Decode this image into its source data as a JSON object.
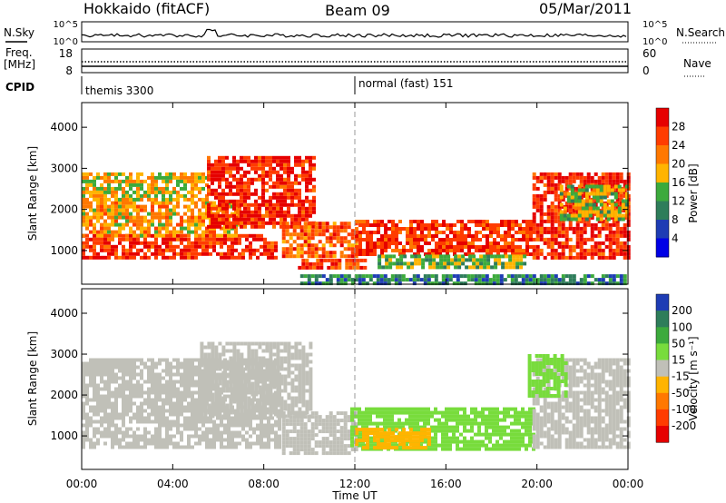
{
  "header": {
    "station": "Hokkaido (fitACF)",
    "beam": "Beam 09",
    "date": "05/Mar/2011"
  },
  "strip_panels": {
    "nsky": {
      "label": "N.Sky",
      "ticks_left": [
        "10^5",
        "10^0"
      ],
      "ticks_right": [
        "10^5",
        "10^0"
      ],
      "right_label": "N.Search"
    },
    "freq": {
      "label_lines": [
        "Freq.",
        "[MHz]"
      ],
      "ticks_left": [
        "18",
        "8"
      ],
      "ticks_right": [
        "60",
        "0"
      ],
      "right_label": "Nave"
    },
    "cpid": {
      "label": "CPID",
      "modes": [
        {
          "name": "themis 3300",
          "start_hour": 0
        },
        {
          "name": "normal (fast) 151",
          "start_hour": 12
        }
      ]
    }
  },
  "x_axis": {
    "label": "Time UT",
    "range_hours": [
      0,
      24
    ],
    "ticks": [
      "00:00",
      "04:00",
      "08:00",
      "12:00",
      "16:00",
      "20:00",
      "00:00"
    ]
  },
  "power_panel": {
    "ylabel": "Slant Range [km]",
    "yticks": [
      "1000",
      "2000",
      "3000",
      "4000"
    ],
    "colorbar_label": "Power [dB]",
    "colorbar_ticks": [
      "4",
      "8",
      "12",
      "16",
      "20",
      "24",
      "28"
    ],
    "colors": [
      "#0000e6",
      "#1e3cb4",
      "#2e7d5a",
      "#3caa3c",
      "#ffb400",
      "#ff7800",
      "#ff3c00",
      "#e60000"
    ]
  },
  "velocity_panel": {
    "ylabel": "Slant Range [km]",
    "yticks": [
      "1000",
      "2000",
      "3000",
      "4000"
    ],
    "colorbar_label": "Velocity [m s⁻¹]",
    "colorbar_ticks": [
      "200",
      "100",
      "50",
      "15",
      "-15",
      "-50",
      "-100",
      "-200"
    ],
    "colors": [
      "#1e3cb4",
      "#2e7d5a",
      "#3caa3c",
      "#78dc3c",
      "#c0c0b8",
      "#ffb400",
      "#ff7800",
      "#ff3c00",
      "#e60000"
    ]
  },
  "chart_data": [
    {
      "type": "heatmap",
      "xlabel": "Time UT",
      "ylabel": "Slant Range [km]",
      "xlim": [
        0,
        24
      ],
      "ylim": [
        180,
        4600
      ],
      "colorbar": "Power [dB]",
      "regions": [
        {
          "t0": 0.0,
          "t1": 8.6,
          "r0": 800,
          "r1": 1400,
          "value": 28
        },
        {
          "t0": 0.0,
          "t1": 7.0,
          "r0": 1400,
          "r1": 2200,
          "value": 20
        },
        {
          "t0": 0.0,
          "t1": 5.5,
          "r0": 2200,
          "r1": 2900,
          "value": 18
        },
        {
          "t0": 5.5,
          "t1": 10.2,
          "r0": 1600,
          "r1": 3300,
          "value": 28
        },
        {
          "t0": 8.8,
          "t1": 12.0,
          "r0": 900,
          "r1": 1700,
          "value": 24
        },
        {
          "t0": 9.5,
          "t1": 12.5,
          "r0": 550,
          "r1": 800,
          "value": 26
        },
        {
          "t0": 12.0,
          "t1": 19.8,
          "r0": 900,
          "r1": 1750,
          "value": 27
        },
        {
          "t0": 13.0,
          "t1": 19.5,
          "r0": 600,
          "r1": 900,
          "value": 15
        },
        {
          "t0": 19.8,
          "t1": 24.0,
          "r0": 800,
          "r1": 2900,
          "value": 28
        },
        {
          "t0": 21.0,
          "t1": 24.0,
          "r0": 1800,
          "r1": 2600,
          "value": 16
        },
        {
          "t0": 9.6,
          "t1": 23.8,
          "r0": 180,
          "r1": 420,
          "value": 10
        }
      ]
    },
    {
      "type": "heatmap",
      "xlabel": "Time UT",
      "ylabel": "Slant Range [km]",
      "xlim": [
        0,
        24
      ],
      "ylim": [
        180,
        4600
      ],
      "colorbar": "Velocity [m s⁻¹]",
      "regions": [
        {
          "t0": 0.0,
          "t1": 8.7,
          "r0": 700,
          "r1": 2900,
          "value": 0
        },
        {
          "t0": 5.2,
          "t1": 10.0,
          "r0": 1500,
          "r1": 3300,
          "value": 0
        },
        {
          "t0": 8.8,
          "t1": 12.0,
          "r0": 600,
          "r1": 1600,
          "value": 0
        },
        {
          "t0": 11.8,
          "t1": 19.8,
          "r0": 650,
          "r1": 1700,
          "value": 30
        },
        {
          "t0": 12.0,
          "t1": 15.2,
          "r0": 700,
          "r1": 1200,
          "value": -30
        },
        {
          "t0": 19.8,
          "t1": 24.0,
          "r0": 700,
          "r1": 2900,
          "value": 0
        },
        {
          "t0": 19.6,
          "t1": 21.2,
          "r0": 2000,
          "r1": 3000,
          "value": 30
        }
      ]
    }
  ]
}
